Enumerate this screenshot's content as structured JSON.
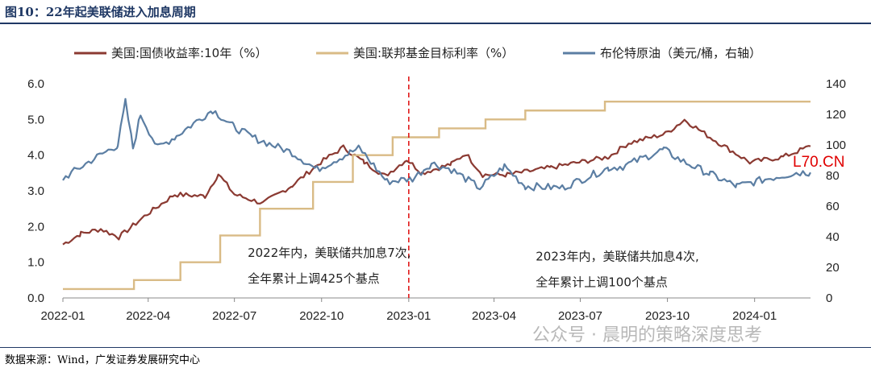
{
  "figure": {
    "title": "图10：22年起美联储进入加息周期",
    "source": "数据来源：Wind，广发证券发展研究中心",
    "watermark": "公众号 · 晨明的策略深度思考",
    "overlay_mark": "L70.CN"
  },
  "colors": {
    "treasury": "#8b3a32",
    "fedrate": "#d9bb86",
    "brent": "#5b7ea3",
    "vline": "#e01a1a",
    "title": "#1f3864"
  },
  "chart_data": {
    "type": "line",
    "legend": {
      "position": "top",
      "items": [
        "美国:国债收益率:10年（%）",
        "美国:联邦基金目标利率（%）",
        "布伦特原油（美元/桶，右轴）"
      ]
    },
    "x_ticks": [
      "2022-01",
      "2022-04",
      "2022-07",
      "2022-10",
      "2023-01",
      "2023-04",
      "2023-07",
      "2023-10",
      "2024-01"
    ],
    "y_left": {
      "range": [
        0,
        6
      ],
      "ticks": [
        "0.0",
        "1.0",
        "2.0",
        "3.0",
        "4.0",
        "5.0",
        "6.0"
      ]
    },
    "y_right": {
      "range": [
        0,
        140
      ],
      "ticks": [
        "0",
        "20",
        "40",
        "60",
        "80",
        "100",
        "120",
        "140"
      ]
    },
    "x_range": [
      "2022-01-01",
      "2024-02-29"
    ],
    "grid": false,
    "vertical_marker": {
      "date": "2023-01-01",
      "style": "dashed"
    },
    "annotations": [
      {
        "lines": [
          "2022年内，美联储共加息7次,",
          "全年累计上调425个基点"
        ],
        "anchor_date": "2022-07-15",
        "anchor_y": 1.15
      },
      {
        "lines": [
          "2023年内，美联储共加息4次,",
          "全年累计上调100个基点"
        ],
        "anchor_date": "2023-05-15",
        "anchor_y": 1.05
      }
    ],
    "series": [
      {
        "name": "美国:国债收益率:10年（%）",
        "axis": "left",
        "color_key": "treasury",
        "points": [
          [
            "2022-01-01",
            1.5
          ],
          [
            "2022-01-20",
            1.8
          ],
          [
            "2022-02-10",
            1.93
          ],
          [
            "2022-03-01",
            1.7
          ],
          [
            "2022-03-31",
            2.35
          ],
          [
            "2022-04-29",
            2.9
          ],
          [
            "2022-05-31",
            2.85
          ],
          [
            "2022-06-14",
            3.47
          ],
          [
            "2022-07-01",
            2.9
          ],
          [
            "2022-07-31",
            2.65
          ],
          [
            "2022-08-31",
            3.15
          ],
          [
            "2022-09-30",
            3.8
          ],
          [
            "2022-10-24",
            4.22
          ],
          [
            "2022-11-15",
            3.8
          ],
          [
            "2022-12-07",
            3.42
          ],
          [
            "2022-12-30",
            3.88
          ],
          [
            "2023-01-15",
            3.5
          ],
          [
            "2023-02-15",
            3.75
          ],
          [
            "2023-03-02",
            4.05
          ],
          [
            "2023-03-20",
            3.45
          ],
          [
            "2023-04-15",
            3.45
          ],
          [
            "2023-05-31",
            3.65
          ],
          [
            "2023-06-30",
            3.8
          ],
          [
            "2023-07-31",
            3.95
          ],
          [
            "2023-08-21",
            4.34
          ],
          [
            "2023-09-29",
            4.6
          ],
          [
            "2023-10-19",
            4.99
          ],
          [
            "2023-11-15",
            4.5
          ],
          [
            "2023-12-27",
            3.8
          ],
          [
            "2024-01-31",
            3.95
          ],
          [
            "2024-02-29",
            4.25
          ]
        ]
      },
      {
        "name": "美国:联邦基金目标利率（%）",
        "axis": "left",
        "color_key": "fedrate",
        "steps": [
          [
            "2022-01-01",
            0.25
          ],
          [
            "2022-03-17",
            0.5
          ],
          [
            "2022-05-05",
            1.0
          ],
          [
            "2022-06-16",
            1.75
          ],
          [
            "2022-07-28",
            2.5
          ],
          [
            "2022-09-22",
            3.25
          ],
          [
            "2022-11-03",
            4.0
          ],
          [
            "2022-12-15",
            4.5
          ],
          [
            "2023-02-02",
            4.75
          ],
          [
            "2023-03-23",
            5.0
          ],
          [
            "2023-05-04",
            5.25
          ],
          [
            "2023-07-27",
            5.5
          ],
          [
            "2024-02-29",
            5.5
          ]
        ]
      },
      {
        "name": "布伦特原油（美元/桶，右轴）",
        "axis": "right",
        "color_key": "brent",
        "points": [
          [
            "2022-01-01",
            78
          ],
          [
            "2022-01-31",
            90
          ],
          [
            "2022-02-28",
            100
          ],
          [
            "2022-03-08",
            128
          ],
          [
            "2022-03-16",
            98
          ],
          [
            "2022-03-24",
            120
          ],
          [
            "2022-04-11",
            98
          ],
          [
            "2022-05-01",
            106
          ],
          [
            "2022-06-08",
            123
          ],
          [
            "2022-06-30",
            112
          ],
          [
            "2022-07-20",
            105
          ],
          [
            "2022-08-31",
            95
          ],
          [
            "2022-09-26",
            84
          ],
          [
            "2022-10-31",
            95
          ],
          [
            "2022-11-10",
            98
          ],
          [
            "2022-12-09",
            76
          ],
          [
            "2023-01-05",
            78
          ],
          [
            "2023-01-25",
            88
          ],
          [
            "2023-02-15",
            84
          ],
          [
            "2023-03-17",
            72
          ],
          [
            "2023-04-12",
            86
          ],
          [
            "2023-05-04",
            73
          ],
          [
            "2023-06-12",
            72
          ],
          [
            "2023-07-31",
            85
          ],
          [
            "2023-08-15",
            86
          ],
          [
            "2023-09-27",
            97
          ],
          [
            "2023-10-15",
            90
          ],
          [
            "2023-11-15",
            81
          ],
          [
            "2023-12-13",
            73
          ],
          [
            "2024-01-15",
            78
          ],
          [
            "2024-02-15",
            82
          ],
          [
            "2024-02-29",
            82
          ]
        ]
      }
    ]
  }
}
